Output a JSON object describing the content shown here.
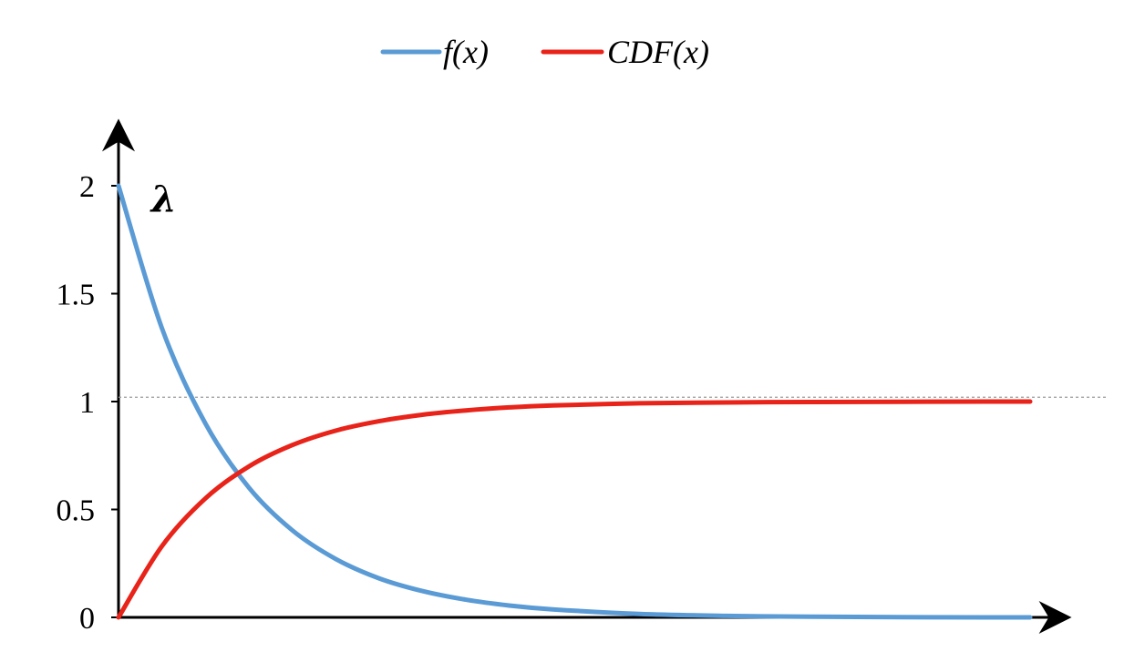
{
  "chart_data": {
    "type": "line",
    "title": "",
    "xlabel": "",
    "ylabel": "",
    "xlim": [
      0,
      4.2
    ],
    "ylim": [
      0,
      2
    ],
    "yticks": [
      0,
      0.5,
      1,
      1.5,
      2
    ],
    "ytick_labels": [
      "0",
      "0.5",
      "1",
      "1.5",
      "2"
    ],
    "grid": false,
    "legend_position": "top-center",
    "reference_line": {
      "y": 1.02,
      "style": "dashed",
      "color": "#9a9a9a"
    },
    "annotations": [
      {
        "text": "λ",
        "x": 0.15,
        "y": 1.88
      }
    ],
    "series": [
      {
        "name": "f(x)",
        "color": "#5b9bd5",
        "x": [
          0,
          0.2,
          0.4,
          0.6,
          0.8,
          1.0,
          1.2,
          1.4,
          1.6,
          1.8,
          2.0,
          2.4,
          2.8,
          3.2,
          3.6,
          4.0,
          4.2
        ],
        "values": [
          2.0,
          1.34,
          0.899,
          0.602,
          0.404,
          0.271,
          0.181,
          0.122,
          0.082,
          0.055,
          0.037,
          0.016,
          0.007,
          0.003,
          0.001,
          0.0,
          0.0
        ]
      },
      {
        "name": "CDF(x)",
        "color": "#e8231a",
        "x": [
          0,
          0.2,
          0.4,
          0.6,
          0.8,
          1.0,
          1.2,
          1.4,
          1.6,
          1.8,
          2.0,
          2.4,
          2.8,
          3.2,
          3.6,
          4.0,
          4.2
        ],
        "values": [
          0.0,
          0.33,
          0.551,
          0.699,
          0.798,
          0.865,
          0.909,
          0.939,
          0.959,
          0.973,
          0.982,
          0.992,
          0.996,
          0.998,
          0.999,
          1.0,
          1.0
        ]
      }
    ]
  }
}
